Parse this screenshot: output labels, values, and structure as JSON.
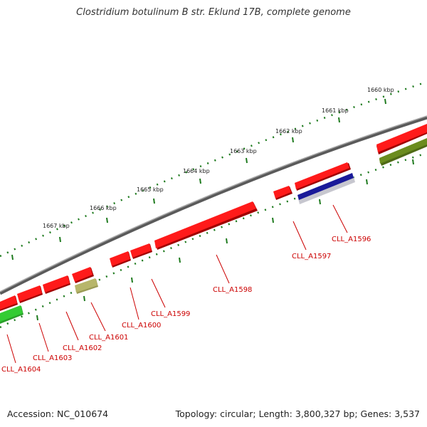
{
  "title": "Clostridium botulinum B str. Eklund 17B, complete genome",
  "footer": {
    "accession": "Accession: NC_010674",
    "summary": "Topology: circular; Length: 3,800,327 bp; Genes: 3,537"
  },
  "scale_labels": [
    "1660 kbp",
    "1661 kbp",
    "1662 kbp",
    "1663 kbp",
    "1664 kbp",
    "1665 kbp",
    "1666 kbp",
    "1667 kbp"
  ],
  "gene_labels": [
    "CLL_A1596",
    "CLL_A1597",
    "CLL_A1598",
    "CLL_A1599",
    "CLL_A1600",
    "CLL_A1601",
    "CLL_A1602",
    "CLL_A1603",
    "CLL_A1604"
  ],
  "colors": {
    "forward_gene": "#ff1a1a",
    "forward_gene_shadow": "#b30000",
    "backbone": "#7a7a7a",
    "tick": "#1e7a1e",
    "label": "#cc0000",
    "blue_feature": "#1a1a99",
    "olive_feature": "#6b8c1e",
    "khaki_feature": "#b7b66a",
    "green_feature": "#33cc33"
  }
}
